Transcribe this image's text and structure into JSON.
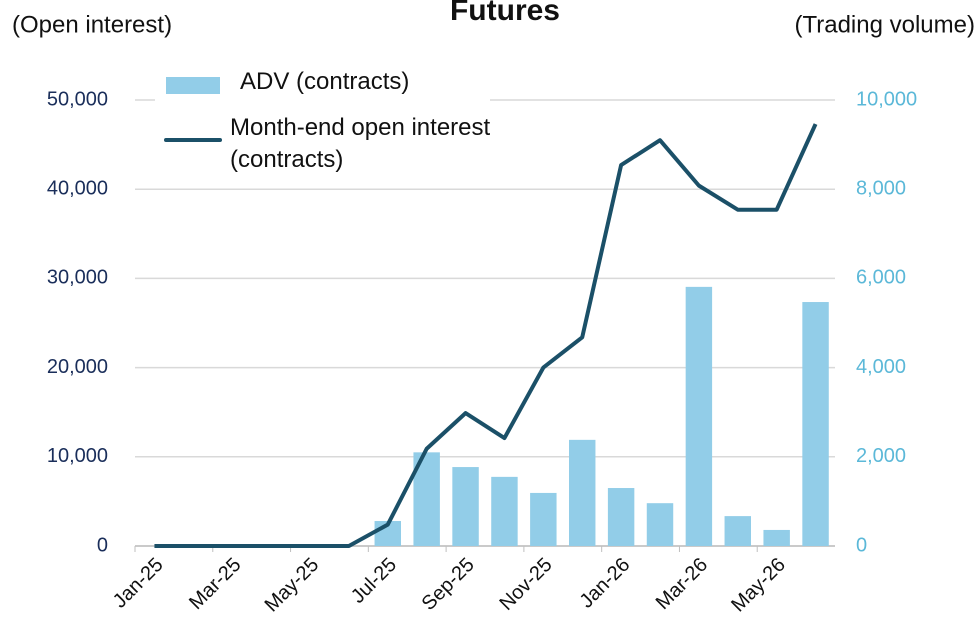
{
  "chart_data": {
    "type": "bar",
    "title": "Futures",
    "y_label": "(Open interest)",
    "y2_label": "(Trading volume)",
    "categories": [
      "Jan-25",
      null,
      "Mar-25",
      null,
      "May-25",
      null,
      "Jul-25",
      null,
      "Sep-25",
      null,
      "Nov-25",
      null,
      "Jan-26",
      null,
      "Mar-26",
      null,
      "May-26",
      null
    ],
    "series": [
      {
        "name": "ADV (contracts)",
        "type": "bar",
        "axis": "y2",
        "color": "#92cde8",
        "values": [
          0,
          0,
          0,
          0,
          0,
          0,
          560,
          2100,
          1770,
          1550,
          1190,
          2380,
          1300,
          960,
          5810,
          670,
          360,
          5470
        ]
      },
      {
        "name": "Month-end open interest (contracts)",
        "type": "line",
        "color": "#1b5068",
        "values": [
          0,
          0,
          0,
          0,
          0,
          0,
          2400,
          10900,
          14900,
          12100,
          20000,
          23400,
          42700,
          45500,
          40400,
          37700,
          37700,
          47300
        ]
      }
    ],
    "ylim": [
      0,
      50000
    ],
    "yticks": [
      0,
      {
        "value": 10000,
        "label": "10,000"
      },
      {
        "value": 20000,
        "label": "20,000"
      },
      {
        "value": 30000,
        "label": "30,000"
      },
      {
        "value": 40000,
        "label": "40,000"
      },
      {
        "value": 50000,
        "label": "50,000"
      }
    ],
    "y2lim": [
      0,
      10000
    ],
    "y2ticks": [
      0,
      {
        "value": 2000,
        "label": "2,000"
      },
      {
        "value": 4000,
        "label": "4,000"
      },
      {
        "value": 6000,
        "label": "6,000"
      },
      {
        "value": 8000,
        "label": "8,000"
      },
      {
        "value": 10000,
        "label": "10,000"
      }
    ],
    "grid": true,
    "legend": "top-left"
  }
}
